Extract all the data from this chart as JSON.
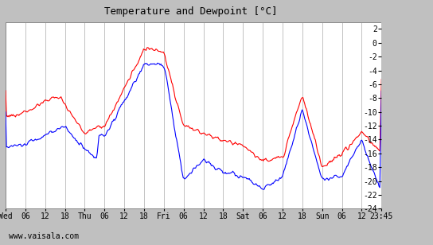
{
  "title": "Temperature and Dewpoint [°C]",
  "ylim": [
    -24,
    3
  ],
  "yticks": [
    2,
    0,
    -2,
    -4,
    -6,
    -8,
    -10,
    -12,
    -14,
    -16,
    -18,
    -20,
    -22,
    -24
  ],
  "bg_color": "#c0c0c0",
  "plot_bg_color": "#ffffff",
  "grid_color": "#aaaaaa",
  "red_color": "#ff0000",
  "blue_color": "#0000ff",
  "line_width": 0.8,
  "footer_text": "www.vaisala.com",
  "x_tick_labels": [
    "Wed",
    "06",
    "12",
    "18",
    "Thu",
    "06",
    "12",
    "18",
    "Fri",
    "06",
    "12",
    "18",
    "Sat",
    "06",
    "12",
    "18",
    "Sun",
    "06",
    "12",
    "23:45"
  ],
  "x_tick_positions": [
    0,
    6,
    12,
    18,
    24,
    30,
    36,
    42,
    48,
    54,
    60,
    66,
    72,
    78,
    84,
    90,
    96,
    102,
    108,
    114
  ],
  "total_hours": 114
}
